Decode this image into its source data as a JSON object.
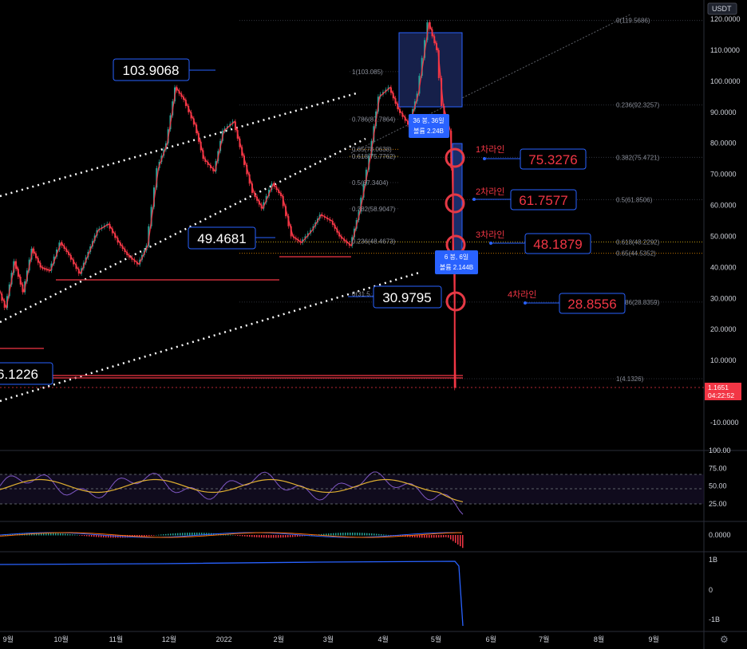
{
  "chart_data": {
    "type": "line",
    "title": "",
    "currency": "USDT",
    "price_axis": {
      "ticks": [
        "120.0000",
        "110.0000",
        "100.0000",
        "90.0000",
        "80.0000",
        "70.0000",
        "60.0000",
        "50.0000",
        "40.0000",
        "30.0000",
        "20.0000",
        "10.0000",
        "0.0000",
        "-10.0000"
      ],
      "ylim": [
        -14,
        122
      ]
    },
    "time_axis": {
      "ticks": [
        "9월",
        "10월",
        "11월",
        "12월",
        "2022",
        "2월",
        "3월",
        "4월",
        "5월",
        "6월",
        "7월",
        "8월",
        "9월"
      ]
    },
    "price_series": {
      "name": "",
      "x": [
        "2021-08-20",
        "2021-08-25",
        "2021-08-31",
        "2021-09-05",
        "2021-09-10",
        "2021-09-15",
        "2021-09-20",
        "2021-09-25",
        "2021-10-01",
        "2021-10-06",
        "2021-10-12",
        "2021-10-17",
        "2021-10-22",
        "2021-10-28",
        "2021-11-03",
        "2021-11-08",
        "2021-11-14",
        "2021-11-19",
        "2021-11-25",
        "2021-11-30",
        "2021-12-05",
        "2021-12-10",
        "2021-12-16",
        "2021-12-21",
        "2021-12-27",
        "2022-01-01",
        "2022-01-07",
        "2022-01-12",
        "2022-01-18",
        "2022-01-23",
        "2022-01-29",
        "2022-02-03",
        "2022-02-09",
        "2022-02-14",
        "2022-02-20",
        "2022-02-25",
        "2022-03-03",
        "2022-03-08",
        "2022-03-14",
        "2022-03-19",
        "2022-03-25",
        "2022-03-30",
        "2022-04-05",
        "2022-04-10",
        "2022-04-16",
        "2022-04-21",
        "2022-04-27",
        "2022-05-02",
        "2022-05-05",
        "2022-05-07",
        "2022-05-09",
        "2022-05-10",
        "2022-05-11",
        "2022-05-12"
      ],
      "y": [
        44,
        36,
        27,
        42,
        32,
        46,
        40,
        39,
        48,
        44,
        38,
        45,
        52,
        54,
        48,
        44,
        41,
        47,
        72,
        80,
        98,
        94,
        86,
        75,
        71,
        84,
        87,
        76,
        64,
        59,
        67,
        63,
        50,
        48,
        52,
        57,
        55,
        50,
        47,
        58,
        76,
        95,
        98,
        91,
        86,
        96,
        119,
        110,
        92,
        88,
        84,
        72,
        40,
        1.17
      ]
    },
    "big_labels": [
      "103.9068",
      "49.4681",
      "30.9795",
      "6.1226"
    ],
    "lines": [
      {
        "label": "1차라인",
        "value": "75.3276"
      },
      {
        "label": "2차라인",
        "value": "61.7577"
      },
      {
        "label": "3차라인",
        "value": "48.1879"
      },
      {
        "label": "4차라인",
        "value": "28.8556"
      }
    ],
    "fib_right": [
      {
        "text": "0(119.5686)",
        "value": 119.5686
      },
      {
        "text": "0.236(92.3257)",
        "value": 92.3257
      },
      {
        "text": "0.382(75.4721)",
        "value": 75.4721
      },
      {
        "text": "0.5(61.8506)",
        "value": 61.8506
      },
      {
        "text": "0.618(48.2292)",
        "value": 48.2292,
        "color": "#f5c518"
      },
      {
        "text": "0.65(44.5352)",
        "value": 44.5352,
        "color": "#ff9800"
      },
      {
        "text": "0.786(28.8359)",
        "value": 28.8359
      },
      {
        "text": "1(4.1326)",
        "value": 4.1326
      }
    ],
    "fib_mid": [
      {
        "text": "1(103.085)",
        "value": 103.085
      },
      {
        "text": "0.786(87.7864)",
        "value": 87.7864
      },
      {
        "text": "0.65(78.0638)",
        "value": 78.0638,
        "color": "#ff9800"
      },
      {
        "text": "0.618(75.7762)",
        "value": 75.7762,
        "color": "#f5c518"
      },
      {
        "text": "0.5(67.3404)",
        "value": 67.3404
      },
      {
        "text": "0.382(58.9047)",
        "value": 58.9047
      },
      {
        "text": "0.236(48.4673)",
        "value": 48.4673
      },
      {
        "text": "0(31.5..)",
        "value": 31.5
      }
    ],
    "info_boxes": [
      {
        "line1": "36 봉, 36일",
        "line2": "볼륨 2.24B"
      },
      {
        "line1": "6 봉, 6일",
        "line2": "볼륨 2.144B"
      }
    ],
    "current_price": {
      "value": "1.1651",
      "countdown": "04:22:52"
    },
    "rsi_axis": [
      "100.00",
      "75.00",
      "50.00",
      "25.00"
    ],
    "macd_axis": [
      "0.0000"
    ],
    "volume_axis": [
      "1B",
      "0",
      "-1B"
    ],
    "colors": {
      "up": "#26a69a",
      "down": "#f23645",
      "accent": "#2962ff",
      "fib_gold": "#f5c518",
      "fib_orange": "#ff9800",
      "rsi": "#7e57c2",
      "rsi_ma": "#e0b030"
    }
  }
}
